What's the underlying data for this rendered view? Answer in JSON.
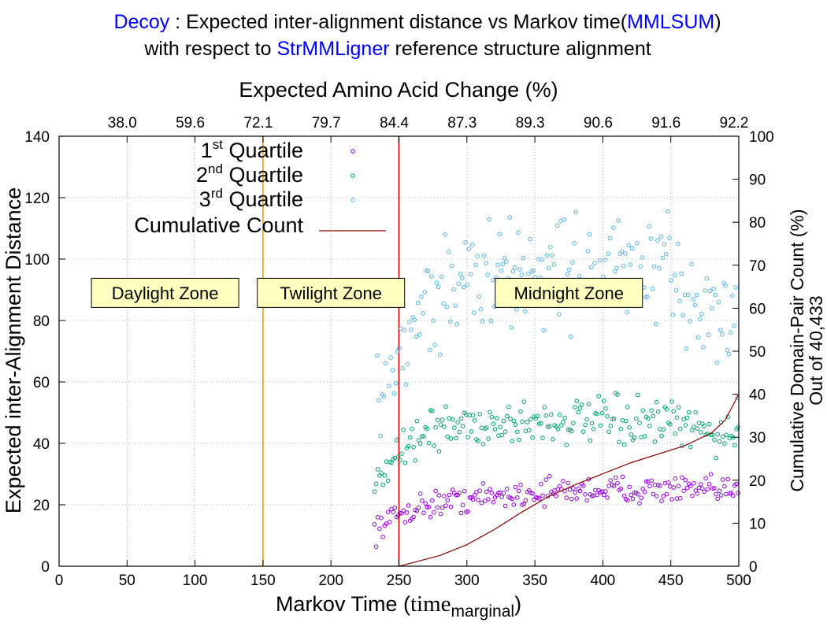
{
  "chart_data": {
    "type": "scatter",
    "title": {
      "line1": [
        {
          "text": "Decoy",
          "color": "#0000ff"
        },
        {
          "text": " : Expected inter-alignment distance vs Markov time(",
          "color": "#000000"
        },
        {
          "text": "MMLSUM",
          "color": "#0000ff"
        },
        {
          "text": ")",
          "color": "#000000"
        }
      ],
      "line2": [
        {
          "text": "with respect to ",
          "color": "#000000"
        },
        {
          "text": "StrMMLigner",
          "color": "#0000ff"
        },
        {
          "text": " reference structure alignment",
          "color": "#000000"
        }
      ]
    },
    "x_axis": {
      "label_main": "Markov Time (",
      "label_serif": "time",
      "label_sub": "marginal",
      "label_close": ")",
      "range": [
        0,
        500
      ],
      "ticks": [
        "0",
        "50",
        "100",
        "150",
        "200",
        "250",
        "300",
        "350",
        "400",
        "450",
        "500"
      ]
    },
    "x2_axis": {
      "label": "Expected Amino Acid Change (%)",
      "ticks": [
        "38.0",
        "59.6",
        "72.1",
        "79.7",
        "84.4",
        "87.3",
        "89.3",
        "90.6",
        "91.6",
        "92.2"
      ]
    },
    "y_axis": {
      "label": "Expected inter-Alignment Distance",
      "range": [
        0,
        140
      ],
      "ticks": [
        "0",
        "20",
        "40",
        "60",
        "80",
        "100",
        "120",
        "140"
      ]
    },
    "y2_axis": {
      "label_line1": "Cumulative Domain-Pair Count (%)",
      "label_line2": "Out of 40,433",
      "range": [
        0,
        100
      ],
      "ticks": [
        "0",
        "10",
        "20",
        "30",
        "40",
        "50",
        "60",
        "70",
        "80",
        "90",
        "100"
      ]
    },
    "grid": true,
    "zones": [
      {
        "label": "Daylight Zone",
        "x_center": 78
      },
      {
        "label": "Twilight Zone",
        "x_center": 200
      },
      {
        "label": "Midnight Zone",
        "x_center": 375
      }
    ],
    "zone_boundaries": [
      {
        "x": 150,
        "color": "#e8a000"
      },
      {
        "x": 250,
        "color": "#cc0000"
      }
    ],
    "zone_label_y": 89,
    "legend": {
      "position": "top-left",
      "entries": [
        {
          "label_main": "1",
          "label_sup": "st",
          "label_rest": " Quartile",
          "color": "#9400d3",
          "kind": "point"
        },
        {
          "label_main": "2",
          "label_sup": "nd",
          "label_rest": " Quartile",
          "color": "#009e73",
          "kind": "point"
        },
        {
          "label_main": "3",
          "label_sup": "rd",
          "label_rest": " Quartile",
          "color": "#56b4e9",
          "kind": "point"
        },
        {
          "label_main": "Cumulative Count",
          "label_sup": "",
          "label_rest": "",
          "color": "#8b0000",
          "kind": "line"
        }
      ]
    },
    "series": [
      {
        "name": "1st Quartile",
        "color": "#9400d3",
        "x_range": [
          232,
          500
        ],
        "trend_x": [
          232,
          250,
          270,
          300,
          350,
          400,
          450,
          500
        ],
        "trend_y": [
          12,
          17,
          20,
          22,
          24,
          25,
          25,
          24
        ],
        "spread": 4
      },
      {
        "name": "2nd Quartile",
        "color": "#009e73",
        "x_range": [
          232,
          500
        ],
        "trend_x": [
          232,
          250,
          270,
          300,
          350,
          400,
          450,
          500
        ],
        "trend_y": [
          30,
          38,
          44,
          46,
          47,
          47,
          46,
          42
        ],
        "spread": 7
      },
      {
        "name": "3rd Quartile",
        "color": "#56b4e9",
        "x_range": [
          234,
          500
        ],
        "trend_x": [
          234,
          250,
          270,
          300,
          350,
          400,
          450,
          500
        ],
        "trend_y": [
          58,
          72,
          86,
          93,
          96,
          98,
          93,
          76
        ],
        "spread": 17
      }
    ],
    "cumulative_count": {
      "name": "Cumulative Count",
      "axis": "y2",
      "x": [
        250,
        260,
        280,
        300,
        320,
        340,
        360,
        380,
        400,
        420,
        440,
        460,
        480,
        490,
        500
      ],
      "y": [
        0,
        0.8,
        2.5,
        5,
        8.5,
        12.5,
        16.2,
        19,
        21.5,
        24,
        26,
        28,
        31,
        34,
        40
      ]
    }
  }
}
